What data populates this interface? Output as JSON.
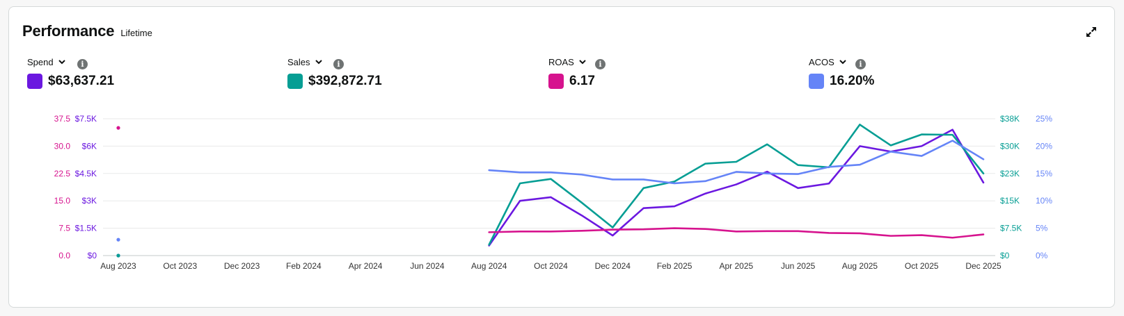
{
  "header": {
    "title": "Performance",
    "subtitle": "Lifetime",
    "expand_icon": "expand-icon"
  },
  "metrics": [
    {
      "label": "Spend",
      "value": "$63,637.21",
      "color": "#6b18e0"
    },
    {
      "label": "Sales",
      "value": "$392,872.71",
      "color": "#069e94"
    },
    {
      "label": "ROAS",
      "value": "6.17",
      "color": "#d6138e"
    },
    {
      "label": "ACOS",
      "value": "16.20%",
      "color": "#6584f7"
    }
  ],
  "chart_data": {
    "type": "line",
    "x": [
      "Aug 2023",
      "Sep 2023",
      "Oct 2023",
      "Nov 2023",
      "Dec 2023",
      "Jan 2024",
      "Feb 2024",
      "Mar 2024",
      "Apr 2024",
      "May 2024",
      "Jun 2024",
      "Jul 2024",
      "Aug 2024",
      "Sep 2024",
      "Oct 2024",
      "Nov 2024",
      "Dec 2024",
      "Jan 2025",
      "Feb 2025",
      "Mar 2025",
      "Apr 2025",
      "May 2025",
      "Jun 2025",
      "Jul 2025",
      "Aug 2025",
      "Sep 2025",
      "Oct 2025",
      "Nov 2025",
      "Dec 2025"
    ],
    "x_tick_labels": [
      "Aug 2023",
      "Oct 2023",
      "Dec 2023",
      "Feb 2024",
      "Apr 2024",
      "Jun 2024",
      "Aug 2024",
      "Oct 2024",
      "Dec 2024",
      "Feb 2025",
      "Apr 2025",
      "Jun 2025",
      "Aug 2025",
      "Oct 2025",
      "Dec 2025"
    ],
    "axes": {
      "roas": {
        "side": "left-outer",
        "ticks": [
          "0.0",
          "7.5",
          "15.0",
          "22.5",
          "30.0",
          "37.5"
        ],
        "range": [
          0,
          37.5
        ],
        "color": "#d6138e"
      },
      "spend": {
        "side": "left-inner",
        "ticks": [
          "$0",
          "$1.5K",
          "$3K",
          "$4.5K",
          "$6K",
          "$7.5K"
        ],
        "range": [
          0,
          7500
        ],
        "color": "#6b18e0"
      },
      "sales": {
        "side": "right-inner",
        "ticks": [
          "$0",
          "$7.5K",
          "$15K",
          "$23K",
          "$30K",
          "$38K"
        ],
        "range": [
          0,
          37500
        ],
        "color": "#069e94"
      },
      "acos": {
        "side": "right-outer",
        "ticks": [
          "0%",
          "5%",
          "10%",
          "15%",
          "20%",
          "25%"
        ],
        "range": [
          0,
          25
        ],
        "color": "#6584f7"
      }
    },
    "series": [
      {
        "name": "Spend",
        "axis": "spend",
        "color": "#6b18e0",
        "values": [
          0,
          null,
          null,
          null,
          null,
          null,
          null,
          null,
          null,
          null,
          null,
          null,
          550,
          3000,
          3200,
          2200,
          1100,
          2600,
          2700,
          3400,
          3900,
          4600,
          3700,
          3950,
          6000,
          5700,
          6000,
          6900,
          4000
        ]
      },
      {
        "name": "Sales",
        "axis": "sales",
        "color": "#069e94",
        "values": [
          0,
          null,
          null,
          null,
          null,
          null,
          null,
          null,
          null,
          null,
          null,
          null,
          3000,
          19800,
          21000,
          14500,
          7700,
          18500,
          20300,
          25200,
          25700,
          30500,
          24800,
          24200,
          35900,
          30200,
          33200,
          33100,
          22500
        ]
      },
      {
        "name": "ROAS",
        "axis": "roas",
        "color": "#d6138e",
        "values": [
          35,
          null,
          null,
          null,
          null,
          null,
          null,
          null,
          null,
          null,
          null,
          null,
          6.4,
          6.6,
          6.6,
          6.8,
          7.1,
          7.2,
          7.5,
          7.3,
          6.6,
          6.7,
          6.7,
          6.2,
          6.1,
          5.4,
          5.6,
          4.9,
          5.8
        ]
      },
      {
        "name": "ACOS",
        "axis": "acos",
        "color": "#6584f7",
        "values": [
          2.9,
          null,
          null,
          null,
          null,
          null,
          null,
          null,
          null,
          null,
          null,
          null,
          15.6,
          15.2,
          15.2,
          14.8,
          13.9,
          13.9,
          13.2,
          13.6,
          15.3,
          15.0,
          14.9,
          16.2,
          16.6,
          19.0,
          18.2,
          21.0,
          17.6
        ]
      }
    ],
    "grid": true,
    "legend": "none"
  }
}
